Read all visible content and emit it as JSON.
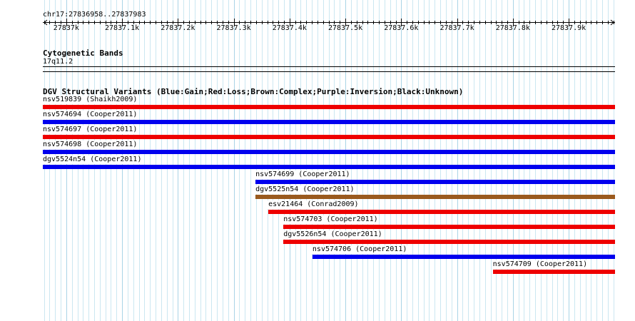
{
  "ruler": {
    "position_label": "chr17:27836958..27837983",
    "start": 27836958,
    "end": 27837983,
    "tick_labels": [
      "27837k",
      "27837.1k",
      "27837.2k",
      "27837.3k",
      "27837.4k",
      "27837.5k",
      "27837.6k",
      "27837.7k",
      "27837.8k",
      "27837.9k"
    ],
    "tick_values": [
      27837000,
      27837100,
      27837200,
      27837300,
      27837400,
      27837500,
      27837600,
      27837700,
      27837800,
      27837900
    ]
  },
  "cytobands": {
    "title": "Cytogenetic Bands",
    "band": "17q11.2"
  },
  "dgv": {
    "title": "DGV Structural Variants (Blue:Gain;Red:Loss;Brown:Complex;Purple:Inversion;Black:Unknown)",
    "colors": {
      "gain": "#0000ee",
      "loss": "#ee0000",
      "complex": "#9a5a1e"
    },
    "variants": [
      {
        "label": "nsv519839 (Shaikh2009)",
        "type": "loss",
        "start": 27836958,
        "end": 27837983
      },
      {
        "label": "nsv574694 (Cooper2011)",
        "type": "gain",
        "start": 27836958,
        "end": 27837983
      },
      {
        "label": "nsv574697 (Cooper2011)",
        "type": "loss",
        "start": 27836958,
        "end": 27837983
      },
      {
        "label": "nsv574698 (Cooper2011)",
        "type": "gain",
        "start": 27836958,
        "end": 27837983
      },
      {
        "label": "dgv5524n54 (Cooper2011)",
        "type": "gain",
        "start": 27836958,
        "end": 27837983
      },
      {
        "label": "nsv574699 (Cooper2011)",
        "type": "gain",
        "start": 27837339,
        "end": 27837983
      },
      {
        "label": "dgv5525n54 (Cooper2011)",
        "type": "complex",
        "start": 27837339,
        "end": 27837983
      },
      {
        "label": "esv21464 (Conrad2009)",
        "type": "loss",
        "start": 27837362,
        "end": 27837983
      },
      {
        "label": "nsv574703 (Cooper2011)",
        "type": "loss",
        "start": 27837389,
        "end": 27837983
      },
      {
        "label": "dgv5526n54 (Cooper2011)",
        "type": "loss",
        "start": 27837389,
        "end": 27837983
      },
      {
        "label": "nsv574706 (Cooper2011)",
        "type": "gain",
        "start": 27837441,
        "end": 27837983
      },
      {
        "label": "nsv574709 (Cooper2011)",
        "type": "loss",
        "start": 27837764,
        "end": 27837983
      }
    ]
  }
}
